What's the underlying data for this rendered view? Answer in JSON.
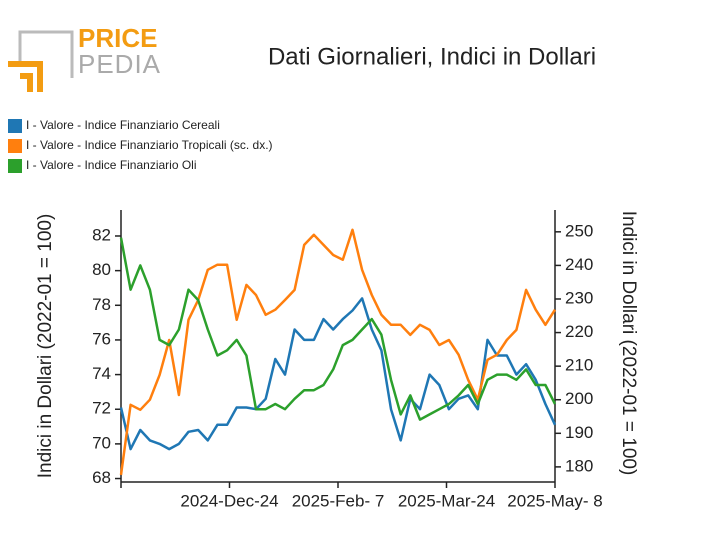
{
  "logo": {
    "top": "PRICE",
    "bottom": "PEDIA"
  },
  "chart_data": {
    "type": "line",
    "title": "Dati Giornalieri, Indici in Dollari",
    "y_label": "Indici in Dollari (2022-01 = 100)",
    "y2_label": "Indici in Dollari (2022-01 = 100)",
    "x": [
      "2024-11-09",
      "2024-11-13",
      "2024-11-17",
      "2024-11-21",
      "2024-11-25",
      "2024-11-29",
      "2024-12-03",
      "2024-12-07",
      "2024-12-11",
      "2024-12-15",
      "2024-12-19",
      "2024-12-23",
      "2024-12-27",
      "2024-12-31",
      "2025-01-04",
      "2025-01-08",
      "2025-01-12",
      "2025-01-16",
      "2025-01-20",
      "2025-01-24",
      "2025-01-28",
      "2025-02-01",
      "2025-02-05",
      "2025-02-09",
      "2025-02-13",
      "2025-02-17",
      "2025-02-21",
      "2025-02-25",
      "2025-03-01",
      "2025-03-05",
      "2025-03-09",
      "2025-03-13",
      "2025-03-17",
      "2025-03-21",
      "2025-03-25",
      "2025-03-29",
      "2025-04-02",
      "2025-04-06",
      "2025-04-10",
      "2025-04-14",
      "2025-04-18",
      "2025-04-22",
      "2025-04-26",
      "2025-04-30",
      "2025-05-04",
      "2025-05-08"
    ],
    "xlim": [
      "2024-11-09",
      "2025-05-08"
    ],
    "xticks": [
      {
        "value": "2024-12-24",
        "label": "2024-Dec-24"
      },
      {
        "value": "2025-02-07",
        "label": "2025-Feb- 7"
      },
      {
        "value": "2025-03-24",
        "label": "2025-Mar-24"
      },
      {
        "value": "2025-05-08",
        "label": "2025-May- 8"
      }
    ],
    "ylim": [
      67.8,
      83.5
    ],
    "yticks": [
      68,
      70,
      72,
      74,
      76,
      78,
      80,
      82
    ],
    "y2lim": [
      175.5,
      256.5
    ],
    "y2ticks": [
      180,
      190,
      200,
      210,
      220,
      230,
      240,
      250
    ],
    "series": [
      {
        "name": "I - Valore - Indice Finanziario Cereali",
        "color": "#1f77b4",
        "axis": "y",
        "values": [
          72.1,
          69.7,
          70.8,
          70.2,
          70.0,
          69.7,
          70.0,
          70.7,
          70.8,
          70.2,
          71.1,
          71.1,
          72.1,
          72.1,
          72.0,
          72.6,
          74.9,
          74.0,
          76.6,
          76.0,
          76.0,
          77.2,
          76.6,
          77.2,
          77.7,
          78.4,
          76.6,
          75.4,
          72.0,
          70.2,
          72.6,
          72.0,
          74.0,
          73.4,
          72.0,
          72.6,
          72.8,
          72.0,
          76.0,
          75.1,
          75.1,
          74.0,
          74.6,
          73.7,
          72.3,
          71.1
        ]
      },
      {
        "name": "I - Valore - Indice Finanziario Tropicali (sc. dx.)",
        "color": "#ff7f0e",
        "axis": "y2",
        "values": [
          177.6,
          198.5,
          197.0,
          200.0,
          207.4,
          217.8,
          201.4,
          223.8,
          229.7,
          238.7,
          240.2,
          240.2,
          223.8,
          234.2,
          231.2,
          225.3,
          226.8,
          229.7,
          232.7,
          246.1,
          249.1,
          246.1,
          243.1,
          241.7,
          250.6,
          238.7,
          231.2,
          225.3,
          222.3,
          222.3,
          219.3,
          222.3,
          220.8,
          216.3,
          217.8,
          213.4,
          205.9,
          200.0,
          211.9,
          213.4,
          217.8,
          220.8,
          232.7,
          226.8,
          222.3,
          226.8
        ]
      },
      {
        "name": "I - Valore - Indice Finanziario Oli",
        "color": "#2ca02c",
        "axis": "y",
        "values": [
          81.9,
          78.9,
          80.3,
          78.9,
          76.0,
          75.7,
          76.6,
          78.9,
          78.3,
          76.6,
          75.1,
          75.4,
          76.0,
          75.1,
          72.0,
          72.0,
          72.3,
          72.0,
          72.6,
          73.1,
          73.1,
          73.4,
          74.3,
          75.7,
          76.0,
          76.6,
          77.2,
          76.3,
          73.7,
          71.7,
          72.8,
          71.4,
          71.7,
          72.0,
          72.3,
          72.8,
          73.4,
          72.3,
          73.7,
          74.0,
          74.0,
          73.7,
          74.3,
          73.4,
          73.4,
          72.3
        ]
      }
    ]
  }
}
